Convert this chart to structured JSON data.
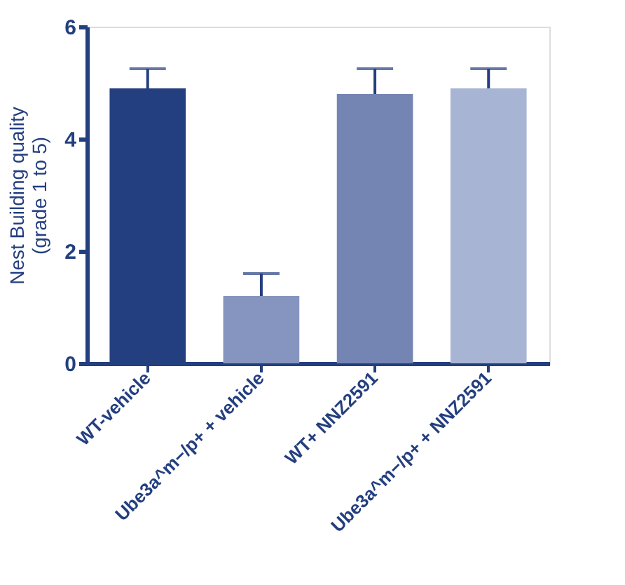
{
  "chart_data": {
    "type": "bar",
    "ylabel": "Nest Building quality\n(grade 1 to 5)",
    "categories": [
      "WT-vehicle",
      "Ube3a^m−/p+ + vehicle",
      "WT+ NNZ2591",
      "Ube3a^m−/p+ + NNZ2591"
    ],
    "values": [
      4.9,
      1.2,
      4.8,
      4.9
    ],
    "colors": [
      "#243f80",
      "#8595bf",
      "#7585b3",
      "#a8b4d4"
    ],
    "errors": [
      [
        4.9,
        5.25
      ],
      [
        1.2,
        1.6
      ],
      [
        4.8,
        5.25
      ],
      [
        4.9,
        5.25
      ]
    ],
    "ylim": [
      0,
      6
    ],
    "yticks": [
      0,
      2,
      4,
      6
    ],
    "grid": false,
    "legend": false
  }
}
